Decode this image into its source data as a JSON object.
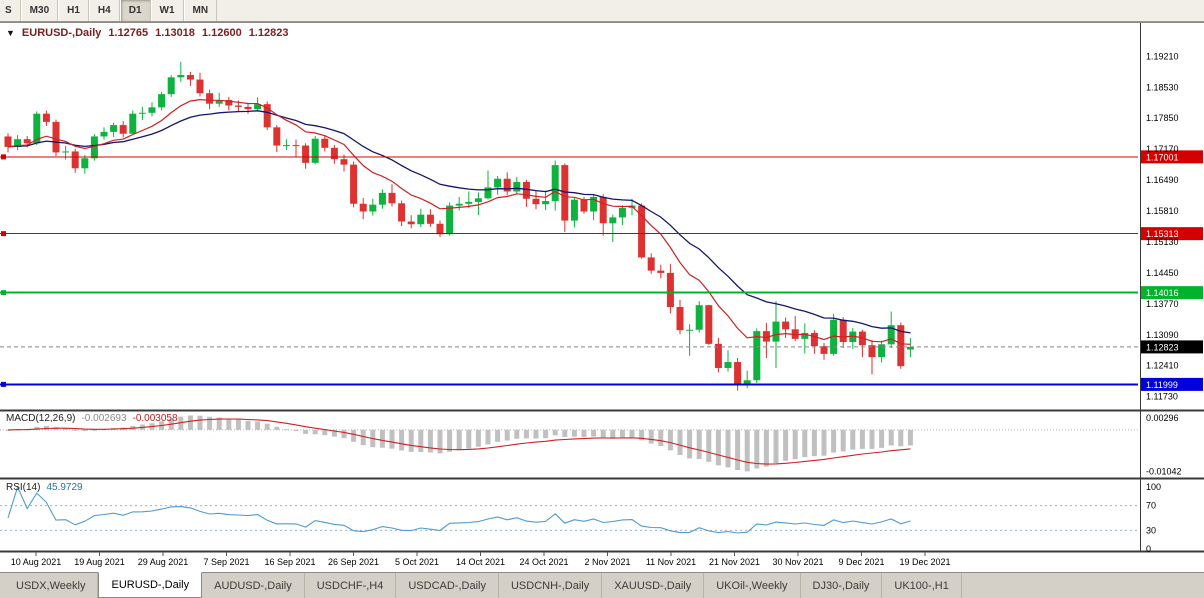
{
  "toolbar": {
    "periods": [
      {
        "label": "S",
        "active": false
      },
      {
        "label": "M30",
        "active": false
      },
      {
        "label": "H1",
        "active": false
      },
      {
        "label": "H4",
        "active": false
      },
      {
        "label": "D1",
        "active": true
      },
      {
        "label": "W1",
        "active": false
      },
      {
        "label": "MN",
        "active": false
      }
    ]
  },
  "chart_header": {
    "collapse_icon": "▼",
    "symbol": "EURUSD-,Daily",
    "open": "1.12765",
    "high": "1.13018",
    "low": "1.12600",
    "close": "1.12823"
  },
  "price_axis": {
    "labels": [
      "1.19210",
      "1.18530",
      "1.17850",
      "1.17170",
      "1.16490",
      "1.15810",
      "1.15130",
      "1.14450",
      "1.13770",
      "1.13090",
      "1.12410",
      "1.11730"
    ],
    "max": 1.199,
    "min": 1.1148
  },
  "hlines": [
    {
      "price": 1.17001,
      "label": "1.17001",
      "color": "#d40000",
      "width": 1
    },
    {
      "price": 1.15313,
      "label": "1.15313",
      "color": "#d40000",
      "width": 1
    },
    {
      "price": 1.14016,
      "label": "1.14016",
      "color": "#00b32c",
      "width": 2
    },
    {
      "price": 1.11999,
      "label": "1.11999",
      "color": "#0000dd",
      "width": 2
    }
  ],
  "current_price": {
    "value": 1.12823,
    "label": "1.12823",
    "badge_bg": "#000000",
    "badge_fg": "#ffffff"
  },
  "indicators": {
    "macd": {
      "name": "MACD(12,26,9)",
      "value_main": "-0.002693",
      "value_signal": "-0.003058",
      "axis_labels": [
        {
          "label": "0.00296",
          "value": 0.00296
        },
        {
          "label": "-0.01042",
          "value": -0.01042
        }
      ],
      "range": [
        -0.0115,
        0.0042
      ],
      "colors": {
        "histogram": "#c0c0c0",
        "signal": "#cc2222"
      }
    },
    "rsi": {
      "name": "RSI(14)",
      "value": "45.9729",
      "axis_labels": [
        {
          "label": "100",
          "value": 100
        },
        {
          "label": "70",
          "value": 70
        },
        {
          "label": "30",
          "value": 30
        },
        {
          "label": "0",
          "value": 0
        }
      ],
      "levels": [
        70,
        30
      ],
      "color": "#4f9bd2",
      "level_color": "#9ab0cc"
    }
  },
  "time_axis": {
    "labels": [
      "10 Aug 2021",
      "19 Aug 2021",
      "29 Aug 2021",
      "7 Sep 2021",
      "16 Sep 2021",
      "26 Sep 2021",
      "5 Oct 2021",
      "14 Oct 2021",
      "24 Oct 2021",
      "2 Nov 2021",
      "11 Nov 2021",
      "21 Nov 2021",
      "30 Nov 2021",
      "9 Dec 2021",
      "19 Dec 2021"
    ]
  },
  "tabs": [
    {
      "label": "USDX,Weekly",
      "active": false
    },
    {
      "label": "EURUSD-,Daily",
      "active": true
    },
    {
      "label": "AUDUSD-,Daily",
      "active": false
    },
    {
      "label": "USDCHF-,H4",
      "active": false
    },
    {
      "label": "USDCAD-,Daily",
      "active": false
    },
    {
      "label": "USDCNH-,Daily",
      "active": false
    },
    {
      "label": "XAUUSD-,Daily",
      "active": false
    },
    {
      "label": "UKOil-,Weekly",
      "active": false
    },
    {
      "label": "DJ30-,Daily",
      "active": false
    },
    {
      "label": "UK100-,H1",
      "active": false
    }
  ],
  "chart_data": {
    "type": "candlestick",
    "symbol": "EURUSD-",
    "timeframe": "Daily",
    "colors": {
      "up": "#0db33e",
      "down": "#dd3232",
      "ma_fast": "#cc2222",
      "ma_slow": "#15156e"
    },
    "ma_fast_period": 10,
    "ma_slow_period": 21,
    "ohlc": [
      [
        1.1745,
        1.1752,
        1.171,
        1.1722
      ],
      [
        1.1722,
        1.1748,
        1.1715,
        1.1739
      ],
      [
        1.1739,
        1.1746,
        1.1721,
        1.173
      ],
      [
        1.173,
        1.18,
        1.1726,
        1.1795
      ],
      [
        1.1795,
        1.1802,
        1.1768,
        1.1777
      ],
      [
        1.1777,
        1.1782,
        1.1702,
        1.171
      ],
      [
        1.171,
        1.1724,
        1.1694,
        1.1712
      ],
      [
        1.1712,
        1.1718,
        1.1665,
        1.1675
      ],
      [
        1.1675,
        1.1704,
        1.1663,
        1.1697
      ],
      [
        1.1697,
        1.175,
        1.1692,
        1.1745
      ],
      [
        1.1745,
        1.1765,
        1.1738,
        1.1755
      ],
      [
        1.1755,
        1.1775,
        1.1744,
        1.177
      ],
      [
        1.177,
        1.1779,
        1.1743,
        1.1751
      ],
      [
        1.1751,
        1.1802,
        1.1748,
        1.1795
      ],
      [
        1.1795,
        1.181,
        1.1781,
        1.1797
      ],
      [
        1.1797,
        1.182,
        1.1789,
        1.1809
      ],
      [
        1.1809,
        1.1843,
        1.1802,
        1.1838
      ],
      [
        1.1838,
        1.188,
        1.1832,
        1.1875
      ],
      [
        1.1875,
        1.1909,
        1.1865,
        1.188
      ],
      [
        1.188,
        1.1887,
        1.1856,
        1.187
      ],
      [
        1.187,
        1.1885,
        1.1833,
        1.184
      ],
      [
        1.184,
        1.1848,
        1.1805,
        1.1817
      ],
      [
        1.1817,
        1.1841,
        1.181,
        1.1825
      ],
      [
        1.1825,
        1.1832,
        1.1802,
        1.1813
      ],
      [
        1.1813,
        1.1824,
        1.1799,
        1.181
      ],
      [
        1.181,
        1.1819,
        1.1795,
        1.1805
      ],
      [
        1.1805,
        1.1831,
        1.18,
        1.1816
      ],
      [
        1.1816,
        1.1822,
        1.1759,
        1.1765
      ],
      [
        1.1765,
        1.177,
        1.1711,
        1.1725
      ],
      [
        1.1725,
        1.1739,
        1.1715,
        1.1726
      ],
      [
        1.1726,
        1.1738,
        1.17,
        1.1725
      ],
      [
        1.1725,
        1.173,
        1.1674,
        1.1687
      ],
      [
        1.1687,
        1.1746,
        1.1684,
        1.174
      ],
      [
        1.174,
        1.1748,
        1.1712,
        1.172
      ],
      [
        1.172,
        1.1726,
        1.1685,
        1.1695
      ],
      [
        1.1695,
        1.1705,
        1.1668,
        1.1683
      ],
      [
        1.1683,
        1.169,
        1.1589,
        1.1597
      ],
      [
        1.1597,
        1.161,
        1.1563,
        1.158
      ],
      [
        1.158,
        1.1608,
        1.1571,
        1.1595
      ],
      [
        1.1595,
        1.1629,
        1.1586,
        1.1621
      ],
      [
        1.1621,
        1.164,
        1.1591,
        1.1598
      ],
      [
        1.1598,
        1.1604,
        1.1548,
        1.1558
      ],
      [
        1.1558,
        1.1572,
        1.1543,
        1.1552
      ],
      [
        1.1552,
        1.1586,
        1.1546,
        1.1573
      ],
      [
        1.1573,
        1.1585,
        1.1546,
        1.1553
      ],
      [
        1.1553,
        1.156,
        1.1524,
        1.153
      ],
      [
        1.153,
        1.16,
        1.1527,
        1.1593
      ],
      [
        1.1593,
        1.1612,
        1.1582,
        1.1597
      ],
      [
        1.1597,
        1.1624,
        1.1588,
        1.1601
      ],
      [
        1.1601,
        1.1622,
        1.1572,
        1.1609
      ],
      [
        1.1609,
        1.167,
        1.1607,
        1.1633
      ],
      [
        1.1633,
        1.1658,
        1.1617,
        1.1652
      ],
      [
        1.1652,
        1.1666,
        1.1616,
        1.1624
      ],
      [
        1.1624,
        1.1656,
        1.162,
        1.1645
      ],
      [
        1.1645,
        1.165,
        1.159,
        1.1608
      ],
      [
        1.1608,
        1.1626,
        1.1585,
        1.1596
      ],
      [
        1.1596,
        1.1626,
        1.1583,
        1.1603
      ],
      [
        1.1603,
        1.1692,
        1.1582,
        1.1682
      ],
      [
        1.1682,
        1.1686,
        1.1535,
        1.156
      ],
      [
        1.156,
        1.161,
        1.1545,
        1.1606
      ],
      [
        1.1606,
        1.1612,
        1.1575,
        1.158
      ],
      [
        1.158,
        1.1616,
        1.1561,
        1.1612
      ],
      [
        1.1612,
        1.1618,
        1.1527,
        1.1554
      ],
      [
        1.1554,
        1.1573,
        1.1513,
        1.1567
      ],
      [
        1.1567,
        1.1594,
        1.155,
        1.1588
      ],
      [
        1.1588,
        1.1608,
        1.1572,
        1.1593
      ],
      [
        1.1593,
        1.1598,
        1.1476,
        1.1479
      ],
      [
        1.1479,
        1.1488,
        1.1443,
        1.145
      ],
      [
        1.145,
        1.1463,
        1.1433,
        1.1445
      ],
      [
        1.1445,
        1.1465,
        1.1356,
        1.137
      ],
      [
        1.137,
        1.1386,
        1.131,
        1.1319
      ],
      [
        1.1319,
        1.1332,
        1.1263,
        1.132
      ],
      [
        1.132,
        1.1383,
        1.1314,
        1.1374
      ],
      [
        1.1374,
        1.1375,
        1.1287,
        1.1289
      ],
      [
        1.1289,
        1.1302,
        1.1226,
        1.1236
      ],
      [
        1.1236,
        1.1275,
        1.1228,
        1.1249
      ],
      [
        1.1249,
        1.1258,
        1.1186,
        1.12
      ],
      [
        1.12,
        1.123,
        1.1192,
        1.1209
      ],
      [
        1.1209,
        1.1323,
        1.1203,
        1.1317
      ],
      [
        1.1317,
        1.1335,
        1.1258,
        1.1294
      ],
      [
        1.1294,
        1.1383,
        1.1236,
        1.1338
      ],
      [
        1.1338,
        1.1347,
        1.1302,
        1.1321
      ],
      [
        1.1321,
        1.135,
        1.1295,
        1.13
      ],
      [
        1.13,
        1.1334,
        1.1268,
        1.1313
      ],
      [
        1.1313,
        1.1319,
        1.1267,
        1.1284
      ],
      [
        1.1284,
        1.1291,
        1.1254,
        1.1267
      ],
      [
        1.1267,
        1.1355,
        1.1263,
        1.1342
      ],
      [
        1.1342,
        1.1348,
        1.128,
        1.1293
      ],
      [
        1.1293,
        1.1324,
        1.1278,
        1.1316
      ],
      [
        1.1316,
        1.132,
        1.126,
        1.1286
      ],
      [
        1.1286,
        1.1298,
        1.1222,
        1.126
      ],
      [
        1.126,
        1.1296,
        1.1248,
        1.1288
      ],
      [
        1.1288,
        1.136,
        1.128,
        1.133
      ],
      [
        1.133,
        1.1336,
        1.1234,
        1.124
      ],
      [
        1.12765,
        1.13018,
        1.126,
        1.12823
      ]
    ]
  }
}
